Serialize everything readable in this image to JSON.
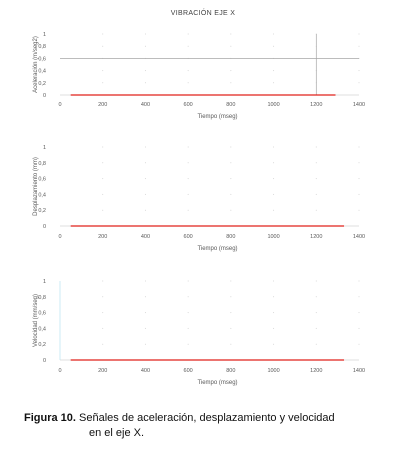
{
  "chart_data": [
    {
      "type": "line",
      "title": "VIBRACIÓN EJE X",
      "xlabel": "Tiempo (mseg)",
      "ylabel": "Aceleración (m/seg2)",
      "xlim": [
        0,
        1400
      ],
      "ylim": [
        0,
        1
      ],
      "xticks": [
        "0",
        "200",
        "400",
        "600",
        "800",
        "1000",
        "1200",
        "1400"
      ],
      "yticks": [
        "0",
        "0,2",
        "0,4",
        "0,6",
        "0,8",
        "1"
      ],
      "series": [
        {
          "x": [
            50,
            1290
          ],
          "y": [
            0,
            0
          ],
          "color": "#e0201b"
        }
      ],
      "cursor": {
        "x": 1200,
        "y": 0.6
      }
    },
    {
      "type": "line",
      "title": "",
      "xlabel": "Tiempo (mseg)",
      "ylabel": "Desplazamiento (mm)",
      "xlim": [
        0,
        1400
      ],
      "ylim": [
        0,
        1
      ],
      "xticks": [
        "0",
        "200",
        "400",
        "600",
        "800",
        "1000",
        "1200",
        "1400"
      ],
      "yticks": [
        "0",
        "0,2",
        "0,4",
        "0,6",
        "0,8",
        "1"
      ],
      "series": [
        {
          "x": [
            50,
            1330
          ],
          "y": [
            0,
            0
          ],
          "color": "#e0201b"
        }
      ]
    },
    {
      "type": "line",
      "title": "",
      "xlabel": "Tiempo (mseg)",
      "ylabel": "Velocidad (mm/seg)",
      "xlim": [
        0,
        1400
      ],
      "ylim": [
        0,
        1
      ],
      "xticks": [
        "0",
        "200",
        "400",
        "600",
        "800",
        "1000",
        "1200",
        "1400"
      ],
      "yticks": [
        "0",
        "0,2",
        "0,4",
        "0,6",
        "0,8",
        "1"
      ],
      "series": [
        {
          "x": [
            50,
            1330
          ],
          "y": [
            0,
            0
          ],
          "color": "#e0201b"
        }
      ]
    }
  ],
  "caption": {
    "label": "Figura 10.",
    "line1": " Señales de aceleración, desplazamiento y velocidad",
    "line2": "en el eje X."
  }
}
